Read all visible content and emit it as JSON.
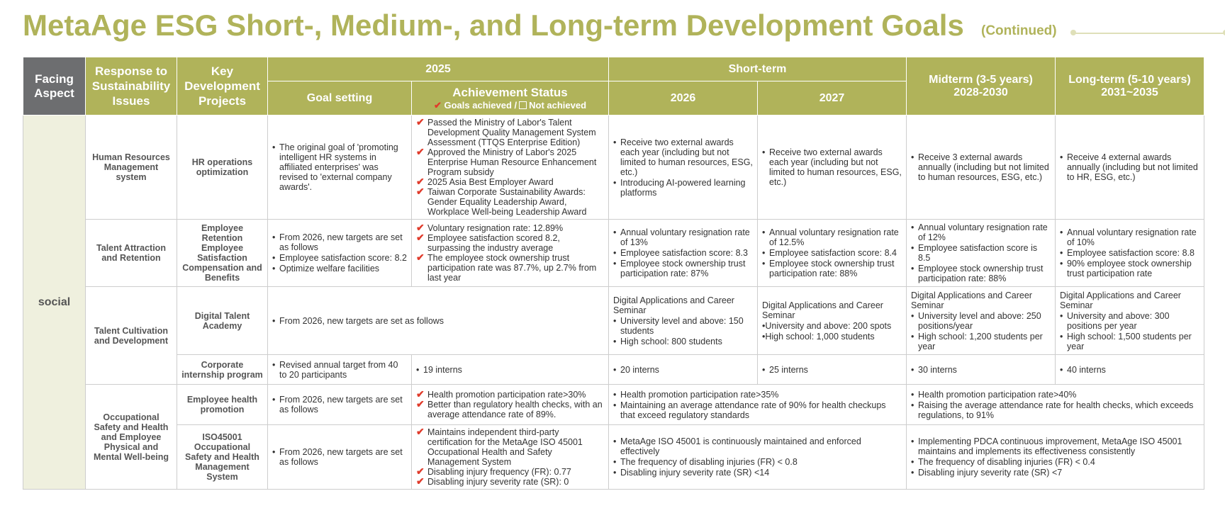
{
  "title": {
    "main": "MetaAge ESG Short-, Medium-, and Long-term Development Goals",
    "sub": "(Continued)"
  },
  "header": {
    "facing": "Facing Aspect",
    "response": "Response to Sustainability Issues",
    "key": "Key Development Projects",
    "y2025": "2025",
    "short_term": "Short-term",
    "goal_setting": "Goal setting",
    "achievement": "Achievement Status",
    "legend_achieved": "Goals achieved /",
    "legend_not": "Not achieved",
    "y2026": "2026",
    "y2027": "2027",
    "midterm": "Midterm (3-5 years)",
    "midterm_years": "2028-2030",
    "longterm": "Long-term (5-10 years)",
    "longterm_years": "2031~2035"
  },
  "aspect": "social",
  "issues": {
    "hr": "Human Resources Management system",
    "talent_attr": "Talent Attraction and Retention",
    "talent_cult": "Talent Cultivation and Development",
    "ohs": "Occupational Safety and Health and Employee Physical and Mental Well-being"
  },
  "rows": {
    "hr_ops": {
      "project": "HR operations optimization",
      "goal": [
        "The original goal of 'promoting intelligent HR systems in affiliated enterprises' was revised to 'external company awards'."
      ],
      "achievement": [
        "Passed the Ministry of Labor's Talent Development Quality Management System Assessment (TTQS Enterprise Edition)",
        "Approved the Ministry of Labor's 2025 Enterprise Human Resource Enhancement Program subsidy",
        "2025 Asia Best Employer Award",
        "Taiwan Corporate Sustainability Awards: Gender Equality Leadership Award, Workplace Well-being Leadership Award"
      ],
      "y2026": [
        "Receive two external awards each year (including but not limited to human resources, ESG, etc.)",
        "Introducing AI-powered learning platforms"
      ],
      "y2027": [
        "Receive two external awards each year (including but not limited to human resources, ESG, etc.)"
      ],
      "mid": [
        "Receive 3 external awards annually (including but not limited to human resources, ESG, etc.)"
      ],
      "long": [
        "Receive 4 external awards annually (including but not limited to HR, ESG, etc.)"
      ]
    },
    "retention": {
      "project": "Employee Retention Employee Satisfaction Compensation and Benefits",
      "goal": [
        "From 2026, new targets are set as follows",
        "Employee satisfaction score: 8.2",
        "Optimize welfare facilities"
      ],
      "achievement": [
        "Voluntary resignation rate: 12.89%",
        "Employee satisfaction scored 8.2, surpassing the industry average",
        "The employee stock ownership trust participation rate was 87.7%, up 2.7% from last year"
      ],
      "y2026": [
        "Annual voluntary resignation rate of 13%",
        "Employee satisfaction score: 8.3",
        "Employee stock ownership trust participation rate: 87%"
      ],
      "y2027": [
        "Annual voluntary resignation rate of 12.5%",
        "Employee satisfaction score: 8.4",
        "Employee stock ownership trust participation rate: 88%"
      ],
      "mid": [
        "Annual voluntary resignation rate of 12%",
        "Employee satisfaction score is 8.5",
        "Employee stock ownership trust participation rate: 88%"
      ],
      "long": [
        "Annual voluntary resignation rate of 10%",
        "Employee satisfaction score: 8.8",
        "90% employee stock ownership trust participation rate"
      ]
    },
    "digital": {
      "project": "Digital Talent Academy",
      "goal_merged": [
        "From 2026, new targets are set as follows"
      ],
      "y2026_head": "Digital Applications and Career Seminar",
      "y2026": [
        "University level and above: 150 students",
        "High school: 800 students"
      ],
      "y2027_head": "Digital Applications and Career Seminar",
      "y2027": [
        "•University and above: 200 spots",
        "•High school: 1,000 students"
      ],
      "mid_head": "Digital Applications and Career Seminar",
      "mid": [
        "University level and above: 250 positions/year",
        "High school: 1,200 students per year"
      ],
      "long_head": "Digital Applications and Career Seminar",
      "long": [
        "University and above: 300 positions per year",
        "High school: 1,500 students per year"
      ]
    },
    "intern": {
      "project": "Corporate internship program",
      "goal": [
        "Revised annual target from 40 to 20 participants"
      ],
      "achievement": [
        "19 interns"
      ],
      "y2026": [
        "20 interns"
      ],
      "y2027": [
        "25 interns"
      ],
      "mid": [
        "30 interns"
      ],
      "long": [
        "40 interns"
      ]
    },
    "health": {
      "project": "Employee health promotion",
      "goal": [
        "From 2026, new targets are set as follows"
      ],
      "achievement": [
        "Health promotion participation rate>30%",
        "Better than regulatory health checks, with an average attendance rate of 89%."
      ],
      "short": [
        "Health promotion participation rate>35%",
        "Maintaining an average attendance rate of 90% for health checkups that exceed regulatory standards"
      ],
      "midlong": [
        "Health promotion participation rate>40%",
        "Raising the average attendance rate for health checks, which exceeds regulations, to 91%"
      ]
    },
    "iso": {
      "project": "ISO45001 Occupational Safety and Health Management System",
      "goal": [
        "From 2026, new targets are set as follows"
      ],
      "achievement": [
        "Maintains independent third-party certification for the MetaAge ISO 45001 Occupational Health and Safety Management System",
        "Disabling injury frequency (FR): 0.77",
        "Disabling injury severity rate (SR): 0"
      ],
      "short": [
        "MetaAge ISO 45001 is continuously maintained and enforced effectively",
        "The frequency of disabling injuries (FR) < 0.8",
        "Disabling injury severity rate (SR) <14"
      ],
      "midlong": [
        "Implementing PDCA continuous improvement, MetaAge ISO 45001 maintains and implements its effectiveness consistently",
        "The frequency of disabling injuries (FR) < 0.4",
        "Disabling injury severity rate (SR) <7"
      ]
    }
  },
  "colors": {
    "olive": "#b0b35a",
    "grey_header": "#6d6e70",
    "check_red": "#e03b2b",
    "aspect_bg": "#eff0de"
  }
}
